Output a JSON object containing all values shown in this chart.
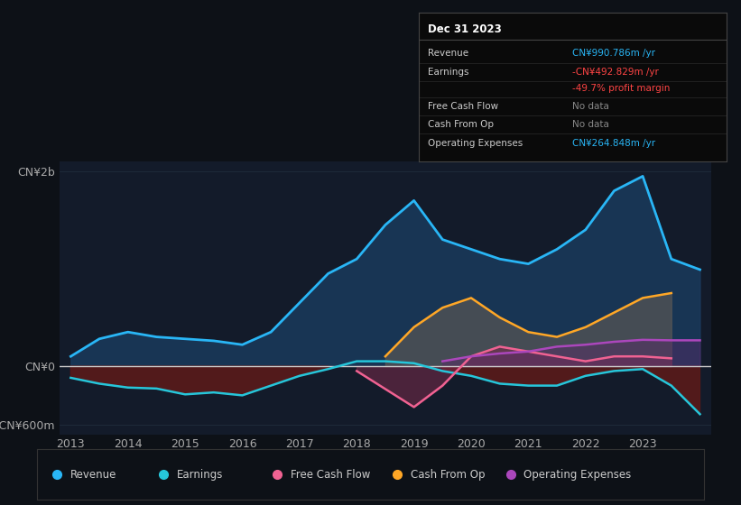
{
  "background_color": "#0d1117",
  "plot_bg_color": "#131b2a",
  "title_box": {
    "date": "Dec 31 2023",
    "rows": [
      {
        "label": "Revenue",
        "value": "CN¥990.786m /yr",
        "value_color": "#29b6f6"
      },
      {
        "label": "Earnings",
        "value": "-CN¥492.829m /yr",
        "value_color": "#ff4444"
      },
      {
        "label": "",
        "value": "-49.7% profit margin",
        "value_color": "#ff4444"
      },
      {
        "label": "Free Cash Flow",
        "value": "No data",
        "value_color": "#888888"
      },
      {
        "label": "Cash From Op",
        "value": "No data",
        "value_color": "#888888"
      },
      {
        "label": "Operating Expenses",
        "value": "CN¥264.848m /yr",
        "value_color": "#29b6f6"
      }
    ]
  },
  "years": [
    2013,
    2013.5,
    2014,
    2014.5,
    2015,
    2015.5,
    2016,
    2016.5,
    2017,
    2017.5,
    2018,
    2018.5,
    2019,
    2019.5,
    2020,
    2020.5,
    2021,
    2021.5,
    2022,
    2022.5,
    2023,
    2023.5,
    2024
  ],
  "revenue": [
    100,
    280,
    350,
    300,
    280,
    260,
    220,
    350,
    650,
    950,
    1100,
    1450,
    1700,
    1300,
    1200,
    1100,
    1050,
    1200,
    1400,
    1800,
    1950,
    1100,
    991
  ],
  "earnings": [
    -120,
    -180,
    -220,
    -230,
    -290,
    -270,
    -300,
    -200,
    -100,
    -30,
    50,
    50,
    30,
    -50,
    -100,
    -180,
    -200,
    -200,
    -100,
    -50,
    -30,
    -200,
    -493
  ],
  "free_cash_flow": [
    null,
    null,
    null,
    null,
    null,
    null,
    null,
    null,
    null,
    null,
    -50,
    null,
    -420,
    -200,
    100,
    200,
    150,
    100,
    50,
    100,
    100,
    80,
    null
  ],
  "cash_from_op": [
    null,
    null,
    null,
    null,
    null,
    null,
    null,
    null,
    null,
    null,
    null,
    100,
    400,
    600,
    700,
    500,
    350,
    300,
    400,
    550,
    700,
    750,
    null
  ],
  "op_expenses": [
    null,
    null,
    null,
    null,
    null,
    null,
    null,
    null,
    null,
    null,
    null,
    null,
    null,
    50,
    100,
    130,
    150,
    200,
    220,
    250,
    270,
    265,
    265
  ],
  "revenue_color": "#29b6f6",
  "earnings_color": "#26c6da",
  "free_cash_flow_color": "#f06292",
  "cash_from_op_color": "#ffa726",
  "op_expenses_color": "#ab47bc",
  "revenue_fill_color": "#1a3a5c",
  "earnings_fill_neg_color": "#5a1a1a",
  "zero_line_color": "#cccccc",
  "grid_color": "#2a3a4a",
  "ylim": [
    -700,
    2100
  ],
  "yticks": [
    -600,
    0,
    2000
  ],
  "ytick_labels": [
    "-CN¥600m",
    "CN¥0",
    "CN¥2b"
  ],
  "xticks": [
    2013,
    2014,
    2015,
    2016,
    2017,
    2018,
    2019,
    2020,
    2021,
    2022,
    2023
  ],
  "xtick_labels": [
    "2013",
    "2014",
    "2015",
    "2016",
    "2017",
    "2018",
    "2019",
    "2020",
    "2021",
    "2022",
    "2023"
  ],
  "legend": [
    {
      "label": "Revenue",
      "color": "#29b6f6"
    },
    {
      "label": "Earnings",
      "color": "#26c6da"
    },
    {
      "label": "Free Cash Flow",
      "color": "#f06292"
    },
    {
      "label": "Cash From Op",
      "color": "#ffa726"
    },
    {
      "label": "Operating Expenses",
      "color": "#ab47bc"
    }
  ]
}
